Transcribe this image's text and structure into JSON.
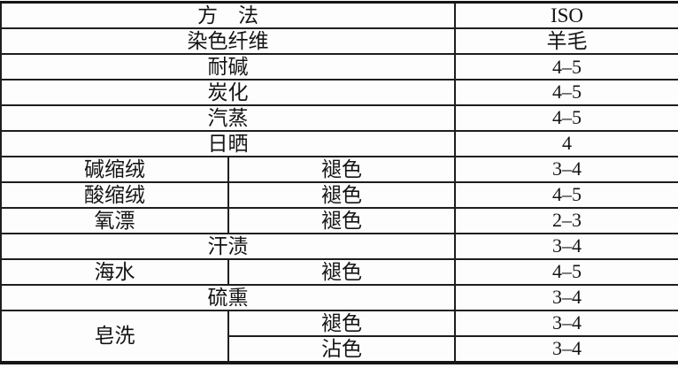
{
  "page": {
    "background": "#fdfdfd",
    "line_color": "#1e1e1e",
    "text_color": "#141414"
  },
  "table": {
    "description": "Colorfastness test methods table, ISO grades for wool",
    "header": {
      "method_label": "方　法",
      "standard_label": "ISO"
    },
    "rows": [
      {
        "cells": [
          "方　法",
          "ISO"
        ]
      },
      {
        "cells": [
          "染色纤维",
          "羊毛"
        ]
      },
      {
        "cells": [
          "耐碱",
          "4–5"
        ]
      },
      {
        "cells": [
          "炭化",
          "4–5"
        ]
      },
      {
        "cells": [
          "汽蒸",
          "4–5"
        ]
      },
      {
        "cells": [
          "日晒",
          "4"
        ]
      },
      {
        "cells": [
          "碱缩绒",
          "褪色",
          "3–4"
        ]
      },
      {
        "cells": [
          "酸缩绒",
          "褪色",
          "4–5"
        ]
      },
      {
        "cells": [
          "氧漂",
          "褪色",
          "2–3"
        ]
      },
      {
        "cells": [
          "汗渍",
          "3–4"
        ]
      },
      {
        "cells": [
          "海水",
          "褪色",
          "4–5"
        ]
      },
      {
        "cells": [
          "硫熏",
          "3–4"
        ]
      },
      {
        "cells": [
          "皂洗",
          "褪色",
          "3–4"
        ]
      },
      {
        "cells": [
          "沾色",
          "3–4"
        ]
      }
    ]
  }
}
